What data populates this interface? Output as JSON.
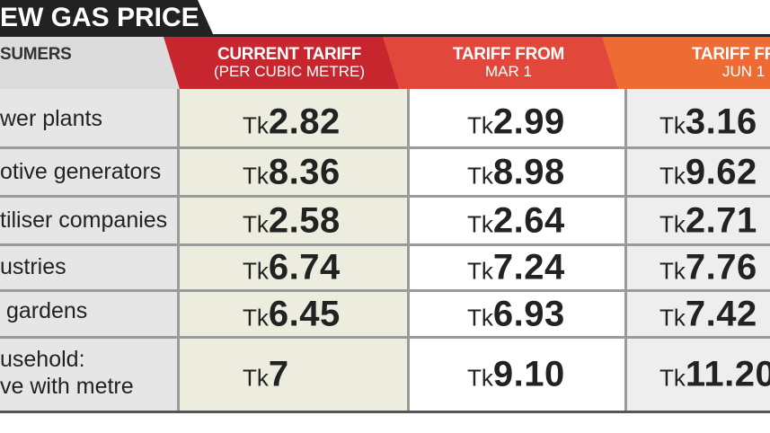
{
  "title": "EW GAS PRICE",
  "headers": {
    "consumers": "SUMERS",
    "current": {
      "line1": "CURRENT TARIFF",
      "line2": "(PER CUBIC METRE)"
    },
    "mar": {
      "line1": "TARIFF FROM",
      "line2": "MAR 1"
    },
    "jun": {
      "line1": "TARIFF FR",
      "line2": "JUN 1"
    }
  },
  "currency": "Tk",
  "colors": {
    "current": "#c8262f",
    "mar": "#e2473b",
    "jun": "#ee6b34"
  },
  "rows": [
    {
      "name": "wer plants",
      "current": "2.82",
      "mar": "2.99",
      "jun": "3.16"
    },
    {
      "name": "otive generators",
      "current": "8.36",
      "mar": "8.98",
      "jun": "9.62"
    },
    {
      "name": "tiliser companies",
      "current": "2.58",
      "mar": "2.64",
      "jun": "2.71"
    },
    {
      "name": "ustries",
      "current": "6.74",
      "mar": "7.24",
      "jun": "7.76"
    },
    {
      "name": " gardens",
      "current": "6.45",
      "mar": "6.93",
      "jun": "7.42"
    },
    {
      "name": "usehold:",
      "name2": "ve with metre",
      "current": "7",
      "mar": "9.10",
      "jun": "11.20"
    }
  ]
}
